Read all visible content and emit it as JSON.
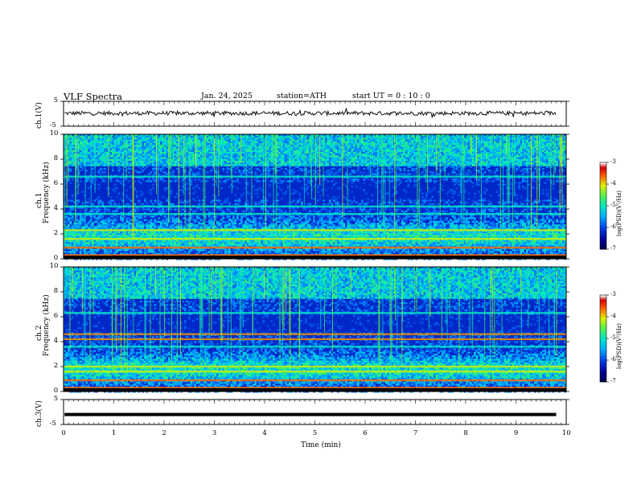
{
  "header": {
    "title": "VLF Spectra",
    "date": "Jan. 24, 2025",
    "station": "station=ATH",
    "start_ut": "start UT =   0 : 10 : 0"
  },
  "chart_data": [
    {
      "type": "line",
      "panel": "ch1-waveform",
      "ylabel": "ch.1(V)",
      "ylim": [
        -5,
        5
      ],
      "yticks": [
        "5",
        "-5"
      ],
      "xlim": [
        0,
        10
      ],
      "series": [
        {
          "values_description_baseline": 0.2,
          "values": [
            0.2
          ]
        }
      ],
      "grid": false
    },
    {
      "type": "heatmap",
      "panel": "ch1-spectrogram",
      "ylabel": "ch.1\nFrequency (kHz)",
      "ylim": [
        0,
        10
      ],
      "yticks": [
        "0",
        "2",
        "4",
        "6",
        "8",
        "10"
      ],
      "xlim": [
        0,
        10
      ],
      "colorbar": {
        "label": "log(PSD)(V²/Hz)",
        "range": [
          -7,
          -3
        ],
        "ticks": [
          "-3",
          "-4",
          "-5",
          "-6",
          "-7"
        ]
      },
      "bands_khz": [
        0.3,
        0.9,
        1.6,
        2.3,
        3.6,
        4.2,
        6.6
      ]
    },
    {
      "type": "heatmap",
      "panel": "ch2-spectrogram",
      "ylabel": "ch.2\nFrequency (kHz)",
      "ylim": [
        0,
        10
      ],
      "yticks": [
        "0",
        "2",
        "4",
        "6",
        "8",
        "10"
      ],
      "xlim": [
        0,
        10
      ],
      "colorbar": {
        "label": "log(PSD)(V²/Hz)",
        "range": [
          -7,
          -3
        ],
        "ticks": [
          "-3",
          "-4",
          "-5",
          "-6",
          "-7"
        ]
      },
      "bands_khz": [
        0.3,
        0.9,
        1.6,
        2.0,
        3.6,
        4.2,
        4.6,
        6.3
      ]
    },
    {
      "type": "line",
      "panel": "ch3-waveform",
      "ylabel": "ch.3(V)",
      "ylim": [
        -5,
        5
      ],
      "yticks": [
        "5",
        "-5"
      ],
      "xlim": [
        0,
        10
      ],
      "series": [
        {
          "values": [
            -1,
            -1
          ]
        }
      ]
    }
  ],
  "xaxis": {
    "xlabel": "Time (min)",
    "ticks": [
      "0",
      "1",
      "2",
      "3",
      "4",
      "5",
      "6",
      "7",
      "8",
      "9",
      "10"
    ]
  }
}
